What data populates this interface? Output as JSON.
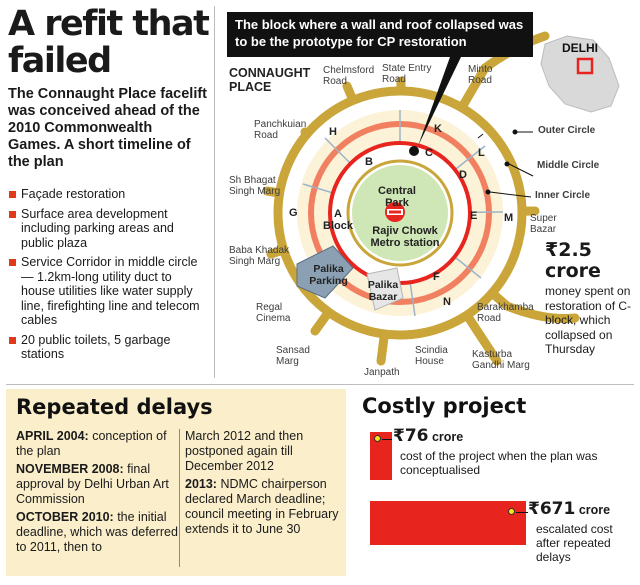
{
  "title": "A refit that failed",
  "intro": "The Connaught Place facelift was conceived ahead of the 2010 Commonwealth Games. A short timeline of the plan",
  "plan_items": [
    "Façade restoration",
    "Surface area development including parking areas and public plaza",
    "Service Corridor in middle circle — 1.2km-long utility duct to house utilities like water supply line, firefighting line and telecom cables",
    "20 public toilets, 5 garbage stations"
  ],
  "callout": "The block where a wall and roof collapsed was to be the prototype for CP restoration",
  "map": {
    "heading": "CONNAUGHT PLACE",
    "inset_label": "DELHI",
    "roads": {
      "chelmsford": "Chelmsford Road",
      "state_entry": "State Entry Road",
      "minto": "Minto Road",
      "panchkuian": "Panchkuian Road",
      "sh_bhagat": "Sh Bhagat Singh Marg",
      "baba_khadak": "Baba Khadak Singh Marg",
      "regal": "Regal Cinema",
      "sansad": "Sansad Marg",
      "janpath": "Janpath",
      "scindia": "Scindia House",
      "kasturba": "Kasturba Gandhi Marg",
      "barakhamba": "Barakhamba Road",
      "super_bazar": "Super Bazar"
    },
    "circles": {
      "outer": "Outer Circle",
      "middle": "Middle Circle",
      "inner": "Inner Circle"
    },
    "central_park": "Central Park",
    "metro": "Rajiv Chowk Metro station",
    "palika_parking": "Palika Parking",
    "palika_bazar": "Palika Bazar",
    "a_block": "A Block",
    "blocks": [
      "A",
      "B",
      "C",
      "D",
      "E",
      "F",
      "G",
      "H",
      "K",
      "L",
      "M",
      "N"
    ]
  },
  "cost_stat": {
    "amount": "₹2.5 crore",
    "text": "money spent on restoration of C-block, which collapsed on Thursday"
  },
  "delays": {
    "heading": "Repeated delays",
    "entries": [
      {
        "date": "APRIL 2004:",
        "text": "conception of the plan"
      },
      {
        "date": "NOVEMBER 2008:",
        "text": "final approval by Delhi Urban Art Commission"
      },
      {
        "date": "OCTOBER 2010:",
        "text": "the initial deadline, which was deferred to 2011, then to"
      }
    ],
    "continued": "March 2012 and then postponed again till December 2012",
    "entry_2013": {
      "date": "2013:",
      "text": "NDMC chairperson declared March deadline; council meeting in February extends it to June 30"
    }
  },
  "costly": {
    "heading": "Costly project",
    "bars": [
      {
        "amount_symbol": "₹76",
        "amount_unit": "crore",
        "desc": "cost of the project when the plan was conceptualised",
        "value": 76
      },
      {
        "amount_symbol": "₹671",
        "amount_unit": "crore",
        "desc": "escalated cost after repeated delays",
        "value": 671
      }
    ]
  },
  "colors": {
    "accent_red": "#e8241f",
    "ring_salmon": "#f08060",
    "road_gold": "#c9a53a",
    "park_green": "#6fae45",
    "panel_cream": "#fbeecb"
  }
}
